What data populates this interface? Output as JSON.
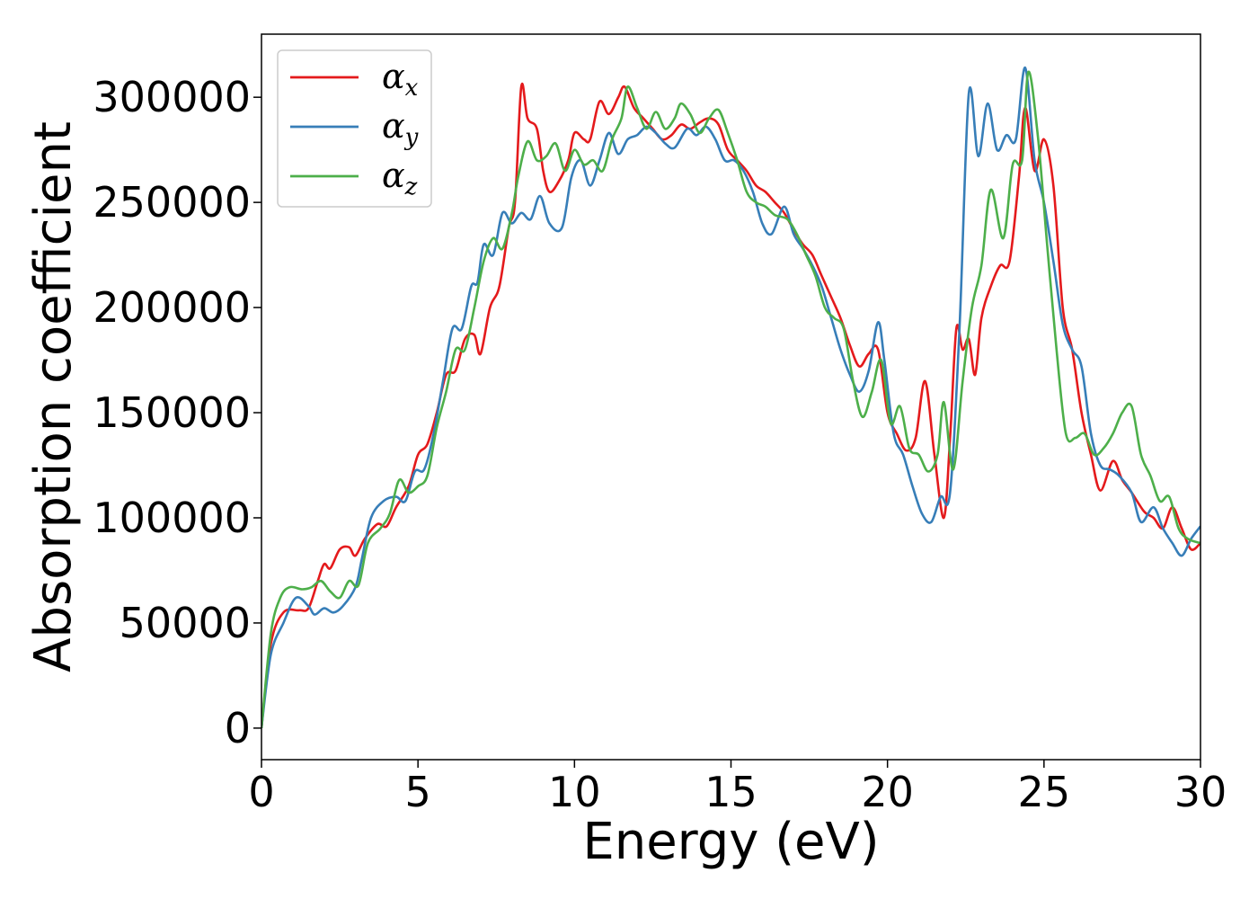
{
  "chart_data": {
    "type": "line",
    "title": "",
    "xlabel": "Energy (eV)",
    "ylabel": "Absorption coefficient",
    "xlim": [
      0,
      30
    ],
    "ylim": [
      -15000,
      330000
    ],
    "xticks": [
      0,
      5,
      10,
      15,
      20,
      25,
      30
    ],
    "yticks": [
      0,
      50000,
      100000,
      150000,
      200000,
      250000,
      300000
    ],
    "xtick_labels": [
      "0",
      "5",
      "10",
      "15",
      "20",
      "25",
      "30"
    ],
    "ytick_labels": [
      "0",
      "50000",
      "100000",
      "150000",
      "200000",
      "250000",
      "300000"
    ],
    "grid": false,
    "legend": {
      "placement": "top-left"
    },
    "series": [
      {
        "name": "α",
        "subscript": "x",
        "color": "#e41a1c",
        "points": [
          [
            0,
            0
          ],
          [
            0.3,
            40000
          ],
          [
            0.7,
            55000
          ],
          [
            1.2,
            56000
          ],
          [
            1.5,
            57000
          ],
          [
            1.8,
            70000
          ],
          [
            2,
            78000
          ],
          [
            2.2,
            76000
          ],
          [
            2.5,
            85000
          ],
          [
            2.8,
            86000
          ],
          [
            3,
            82000
          ],
          [
            3.3,
            90000
          ],
          [
            3.7,
            97000
          ],
          [
            4,
            96000
          ],
          [
            4.3,
            105000
          ],
          [
            4.7,
            115000
          ],
          [
            5,
            130000
          ],
          [
            5.3,
            135000
          ],
          [
            5.6,
            150000
          ],
          [
            5.9,
            168000
          ],
          [
            6.2,
            170000
          ],
          [
            6.5,
            185000
          ],
          [
            6.8,
            187000
          ],
          [
            7,
            178000
          ],
          [
            7.3,
            200000
          ],
          [
            7.6,
            210000
          ],
          [
            7.9,
            238000
          ],
          [
            8.1,
            250000
          ],
          [
            8.3,
            305000
          ],
          [
            8.5,
            290000
          ],
          [
            8.8,
            285000
          ],
          [
            9,
            265000
          ],
          [
            9.2,
            255000
          ],
          [
            9.5,
            260000
          ],
          [
            9.8,
            270000
          ],
          [
            10,
            283000
          ],
          [
            10.3,
            280000
          ],
          [
            10.5,
            280000
          ],
          [
            10.8,
            298000
          ],
          [
            11.1,
            292000
          ],
          [
            11.4,
            300000
          ],
          [
            11.6,
            305000
          ],
          [
            11.9,
            295000
          ],
          [
            12.2,
            290000
          ],
          [
            12.5,
            285000
          ],
          [
            12.8,
            280000
          ],
          [
            13.1,
            282000
          ],
          [
            13.4,
            287000
          ],
          [
            13.7,
            285000
          ],
          [
            14,
            288000
          ],
          [
            14.3,
            290000
          ],
          [
            14.6,
            287000
          ],
          [
            14.9,
            275000
          ],
          [
            15.2,
            270000
          ],
          [
            15.5,
            265000
          ],
          [
            15.8,
            258000
          ],
          [
            16.1,
            255000
          ],
          [
            16.4,
            250000
          ],
          [
            16.7,
            245000
          ],
          [
            17,
            237000
          ],
          [
            17.3,
            230000
          ],
          [
            17.6,
            225000
          ],
          [
            17.9,
            215000
          ],
          [
            18.2,
            205000
          ],
          [
            18.5,
            195000
          ],
          [
            18.8,
            182000
          ],
          [
            19.1,
            172000
          ],
          [
            19.4,
            178000
          ],
          [
            19.7,
            180000
          ],
          [
            20,
            150000
          ],
          [
            20.3,
            140000
          ],
          [
            20.6,
            132000
          ],
          [
            20.9,
            138000
          ],
          [
            21.2,
            165000
          ],
          [
            21.5,
            130000
          ],
          [
            21.8,
            100000
          ],
          [
            22,
            138000
          ],
          [
            22.2,
            190000
          ],
          [
            22.4,
            180000
          ],
          [
            22.6,
            185000
          ],
          [
            22.8,
            168000
          ],
          [
            23,
            195000
          ],
          [
            23.3,
            210000
          ],
          [
            23.6,
            220000
          ],
          [
            23.9,
            222000
          ],
          [
            24.2,
            262000
          ],
          [
            24.4,
            295000
          ],
          [
            24.7,
            265000
          ],
          [
            25,
            280000
          ],
          [
            25.3,
            258000
          ],
          [
            25.6,
            200000
          ],
          [
            25.9,
            180000
          ],
          [
            26.2,
            150000
          ],
          [
            26.5,
            130000
          ],
          [
            26.8,
            113000
          ],
          [
            27.2,
            127000
          ],
          [
            27.5,
            118000
          ],
          [
            27.8,
            112000
          ],
          [
            28.2,
            103000
          ],
          [
            28.5,
            100000
          ],
          [
            28.8,
            95000
          ],
          [
            29.1,
            105000
          ],
          [
            29.4,
            95000
          ],
          [
            29.7,
            85000
          ],
          [
            30,
            88000
          ]
        ]
      },
      {
        "name": "α",
        "subscript": "y",
        "color": "#377eb8",
        "points": [
          [
            0,
            0
          ],
          [
            0.3,
            35000
          ],
          [
            0.7,
            50000
          ],
          [
            1.1,
            62000
          ],
          [
            1.5,
            58000
          ],
          [
            1.7,
            54000
          ],
          [
            2,
            57000
          ],
          [
            2.3,
            55000
          ],
          [
            2.6,
            58000
          ],
          [
            3,
            67000
          ],
          [
            3.2,
            80000
          ],
          [
            3.5,
            100000
          ],
          [
            3.9,
            108000
          ],
          [
            4.3,
            110000
          ],
          [
            4.6,
            108000
          ],
          [
            4.9,
            122000
          ],
          [
            5.2,
            123000
          ],
          [
            5.5,
            140000
          ],
          [
            5.8,
            165000
          ],
          [
            6.1,
            190000
          ],
          [
            6.4,
            190000
          ],
          [
            6.7,
            210000
          ],
          [
            6.9,
            212000
          ],
          [
            7.1,
            230000
          ],
          [
            7.4,
            225000
          ],
          [
            7.7,
            245000
          ],
          [
            8,
            240000
          ],
          [
            8.3,
            245000
          ],
          [
            8.6,
            242000
          ],
          [
            8.9,
            253000
          ],
          [
            9.2,
            240000
          ],
          [
            9.6,
            238000
          ],
          [
            9.9,
            262000
          ],
          [
            10.2,
            270000
          ],
          [
            10.5,
            258000
          ],
          [
            10.8,
            270000
          ],
          [
            11.1,
            283000
          ],
          [
            11.4,
            273000
          ],
          [
            11.7,
            280000
          ],
          [
            12,
            282000
          ],
          [
            12.3,
            286000
          ],
          [
            12.6,
            283000
          ],
          [
            12.9,
            278000
          ],
          [
            13.2,
            276000
          ],
          [
            13.6,
            285000
          ],
          [
            13.9,
            282000
          ],
          [
            14.2,
            286000
          ],
          [
            14.5,
            280000
          ],
          [
            14.8,
            270000
          ],
          [
            15.1,
            270000
          ],
          [
            15.4,
            265000
          ],
          [
            15.7,
            255000
          ],
          [
            16,
            240000
          ],
          [
            16.3,
            235000
          ],
          [
            16.7,
            248000
          ],
          [
            17,
            235000
          ],
          [
            17.3,
            228000
          ],
          [
            17.6,
            220000
          ],
          [
            17.9,
            210000
          ],
          [
            18.2,
            195000
          ],
          [
            18.5,
            180000
          ],
          [
            18.8,
            168000
          ],
          [
            19.1,
            160000
          ],
          [
            19.4,
            170000
          ],
          [
            19.7,
            193000
          ],
          [
            19.9,
            175000
          ],
          [
            20.2,
            140000
          ],
          [
            20.5,
            130000
          ],
          [
            20.8,
            115000
          ],
          [
            21.1,
            102000
          ],
          [
            21.4,
            98000
          ],
          [
            21.7,
            110000
          ],
          [
            22,
            112000
          ],
          [
            22.3,
            190000
          ],
          [
            22.6,
            302000
          ],
          [
            22.9,
            272000
          ],
          [
            23.2,
            297000
          ],
          [
            23.5,
            275000
          ],
          [
            23.8,
            282000
          ],
          [
            24.1,
            280000
          ],
          [
            24.4,
            314000
          ],
          [
            24.7,
            270000
          ],
          [
            25,
            250000
          ],
          [
            25.3,
            222000
          ],
          [
            25.6,
            192000
          ],
          [
            25.9,
            180000
          ],
          [
            26.2,
            172000
          ],
          [
            26.5,
            140000
          ],
          [
            26.8,
            125000
          ],
          [
            27.1,
            123000
          ],
          [
            27.4,
            120000
          ],
          [
            27.8,
            112000
          ],
          [
            28.1,
            98000
          ],
          [
            28.5,
            105000
          ],
          [
            28.8,
            95000
          ],
          [
            29.1,
            88000
          ],
          [
            29.4,
            82000
          ],
          [
            29.7,
            90000
          ],
          [
            30,
            96000
          ]
        ]
      },
      {
        "name": "α",
        "subscript": "z",
        "color": "#4daf4a",
        "points": [
          [
            0,
            0
          ],
          [
            0.3,
            45000
          ],
          [
            0.6,
            62000
          ],
          [
            0.9,
            67000
          ],
          [
            1.3,
            66000
          ],
          [
            1.6,
            67000
          ],
          [
            1.9,
            70000
          ],
          [
            2.2,
            65000
          ],
          [
            2.5,
            62000
          ],
          [
            2.8,
            70000
          ],
          [
            3.1,
            68000
          ],
          [
            3.4,
            88000
          ],
          [
            3.8,
            95000
          ],
          [
            4.1,
            102000
          ],
          [
            4.4,
            118000
          ],
          [
            4.7,
            112000
          ],
          [
            5,
            115000
          ],
          [
            5.3,
            120000
          ],
          [
            5.6,
            143000
          ],
          [
            5.9,
            160000
          ],
          [
            6.2,
            180000
          ],
          [
            6.5,
            180000
          ],
          [
            6.8,
            200000
          ],
          [
            7.1,
            222000
          ],
          [
            7.4,
            233000
          ],
          [
            7.7,
            228000
          ],
          [
            8,
            245000
          ],
          [
            8.2,
            262000
          ],
          [
            8.5,
            279000
          ],
          [
            8.8,
            270000
          ],
          [
            9.1,
            272000
          ],
          [
            9.4,
            278000
          ],
          [
            9.7,
            265000
          ],
          [
            10,
            275000
          ],
          [
            10.3,
            268000
          ],
          [
            10.6,
            270000
          ],
          [
            10.9,
            265000
          ],
          [
            11.2,
            280000
          ],
          [
            11.5,
            290000
          ],
          [
            11.7,
            305000
          ],
          [
            12,
            295000
          ],
          [
            12.3,
            285000
          ],
          [
            12.6,
            293000
          ],
          [
            12.9,
            285000
          ],
          [
            13.2,
            290000
          ],
          [
            13.4,
            297000
          ],
          [
            13.7,
            292000
          ],
          [
            14,
            283000
          ],
          [
            14.3,
            290000
          ],
          [
            14.6,
            294000
          ],
          [
            14.9,
            283000
          ],
          [
            15.2,
            270000
          ],
          [
            15.5,
            255000
          ],
          [
            15.8,
            250000
          ],
          [
            16.1,
            248000
          ],
          [
            16.4,
            244000
          ],
          [
            16.8,
            242000
          ],
          [
            17.1,
            235000
          ],
          [
            17.4,
            225000
          ],
          [
            17.7,
            215000
          ],
          [
            18,
            200000
          ],
          [
            18.3,
            195000
          ],
          [
            18.6,
            190000
          ],
          [
            18.9,
            165000
          ],
          [
            19.2,
            148000
          ],
          [
            19.5,
            160000
          ],
          [
            19.8,
            175000
          ],
          [
            20.1,
            145000
          ],
          [
            20.4,
            153000
          ],
          [
            20.7,
            133000
          ],
          [
            21,
            130000
          ],
          [
            21.3,
            122000
          ],
          [
            21.6,
            130000
          ],
          [
            21.8,
            155000
          ],
          [
            22.1,
            123000
          ],
          [
            22.4,
            165000
          ],
          [
            22.7,
            200000
          ],
          [
            23,
            220000
          ],
          [
            23.3,
            256000
          ],
          [
            23.7,
            233000
          ],
          [
            24,
            268000
          ],
          [
            24.3,
            270000
          ],
          [
            24.5,
            312000
          ],
          [
            24.8,
            282000
          ],
          [
            25.1,
            230000
          ],
          [
            25.4,
            180000
          ],
          [
            25.7,
            140000
          ],
          [
            26,
            138000
          ],
          [
            26.3,
            140000
          ],
          [
            26.6,
            130000
          ],
          [
            26.9,
            133000
          ],
          [
            27.2,
            140000
          ],
          [
            27.5,
            150000
          ],
          [
            27.8,
            153000
          ],
          [
            28.1,
            130000
          ],
          [
            28.4,
            120000
          ],
          [
            28.7,
            108000
          ],
          [
            29,
            110000
          ],
          [
            29.3,
            95000
          ],
          [
            29.6,
            90000
          ],
          [
            30,
            88000
          ]
        ]
      }
    ]
  }
}
